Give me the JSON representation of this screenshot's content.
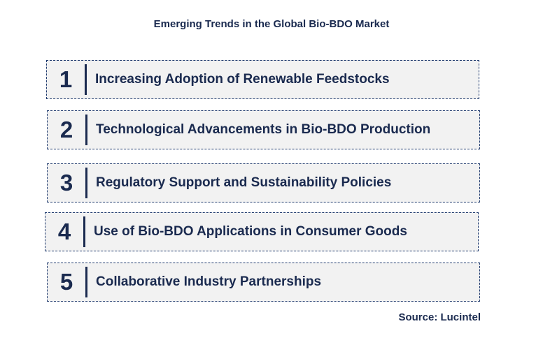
{
  "title": "Emerging Trends in the Global Bio-BDO Market",
  "trends": [
    {
      "number": "1",
      "label": "Increasing Adoption of Renewable Feedstocks"
    },
    {
      "number": "2",
      "label": "Technological Advancements in Bio-BDO Production"
    },
    {
      "number": "3",
      "label": "Regulatory Support and Sustainability Policies"
    },
    {
      "number": "4",
      "label": "Use of Bio-BDO Applications in Consumer Goods"
    },
    {
      "number": "5",
      "label": "Collaborative Industry Partnerships"
    }
  ],
  "source": "Source: Lucintel",
  "colors": {
    "text": "#1a2a4f",
    "box_fill": "#f2f2f2",
    "box_border": "#1f3a6e"
  }
}
